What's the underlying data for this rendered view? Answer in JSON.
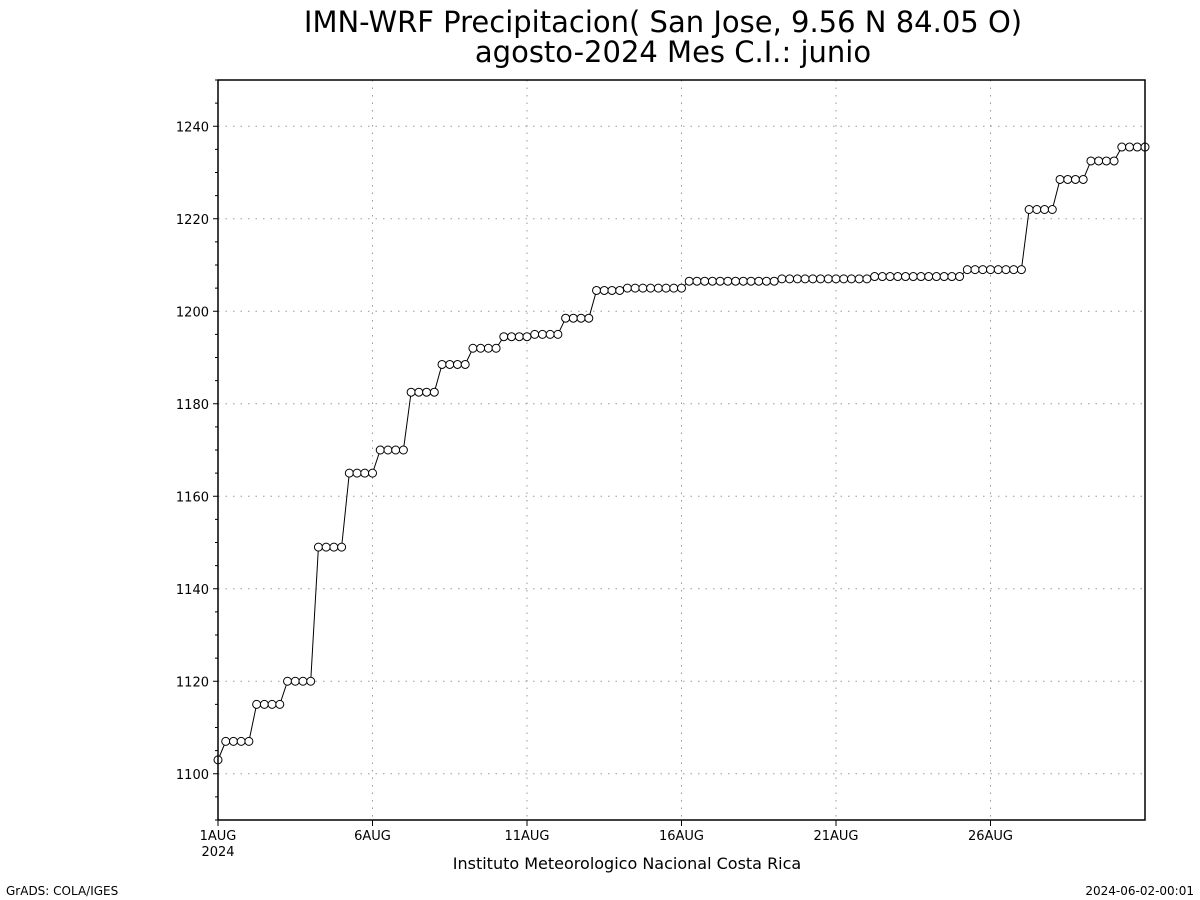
{
  "chart_data": {
    "type": "line",
    "title": "IMN-WRF  Precipitacion( San Jose, 9.56  N 84.05  O)",
    "subtitle": "agosto-2024 Mes C.I.: junio",
    "xlabel": "Instituto Meteorologico Nacional Costa Rica",
    "ylabel": "",
    "x_start": "2024-08-01",
    "x_end": "2024-08-31",
    "x_step_hours": 6,
    "ylim": [
      1090,
      1250
    ],
    "yticks": [
      1100,
      1120,
      1140,
      1160,
      1180,
      1200,
      1220,
      1240
    ],
    "xticks": [
      {
        "date": "2024-08-01",
        "label": "1AUG",
        "sublabel": "2024"
      },
      {
        "date": "2024-08-06",
        "label": "6AUG",
        "sublabel": ""
      },
      {
        "date": "2024-08-11",
        "label": "11AUG",
        "sublabel": ""
      },
      {
        "date": "2024-08-16",
        "label": "16AUG",
        "sublabel": ""
      },
      {
        "date": "2024-08-21",
        "label": "21AUG",
        "sublabel": ""
      },
      {
        "date": "2024-08-26",
        "label": "26AUG",
        "sublabel": ""
      }
    ],
    "grid": true,
    "marker": "open-circle",
    "line_color": "#000000",
    "series": [
      {
        "values": [
          1103,
          1107,
          1107,
          1107,
          1107,
          1115,
          1115,
          1115,
          1115,
          1120,
          1120,
          1120,
          1120,
          1149,
          1149,
          1149,
          1149,
          1165,
          1165,
          1165,
          1165,
          1170,
          1170,
          1170,
          1170,
          1182.5,
          1182.5,
          1182.5,
          1182.5,
          1188.5,
          1188.5,
          1188.5,
          1188.5,
          1192,
          1192,
          1192,
          1192,
          1194.5,
          1194.5,
          1194.5,
          1194.5,
          1195,
          1195,
          1195,
          1195,
          1198.5,
          1198.5,
          1198.5,
          1198.5,
          1204.5,
          1204.5,
          1204.5,
          1204.5,
          1205,
          1205,
          1205,
          1205,
          1205,
          1205,
          1205,
          1205,
          1206.5,
          1206.5,
          1206.5,
          1206.5,
          1206.5,
          1206.5,
          1206.5,
          1206.5,
          1206.5,
          1206.5,
          1206.5,
          1206.5,
          1207,
          1207,
          1207,
          1207,
          1207,
          1207,
          1207,
          1207,
          1207,
          1207,
          1207,
          1207,
          1207.5,
          1207.5,
          1207.5,
          1207.5,
          1207.5,
          1207.5,
          1207.5,
          1207.5,
          1207.5,
          1207.5,
          1207.5,
          1207.5,
          1209,
          1209,
          1209,
          1209,
          1209,
          1209,
          1209,
          1209,
          1222,
          1222,
          1222,
          1222,
          1228.5,
          1228.5,
          1228.5,
          1228.5,
          1232.5,
          1232.5,
          1232.5,
          1232.5,
          1235.5,
          1235.5,
          1235.5,
          1235.5
        ]
      }
    ]
  },
  "footer": {
    "left": "GrADS: COLA/IGES",
    "right": "2024-06-02-00:01"
  }
}
